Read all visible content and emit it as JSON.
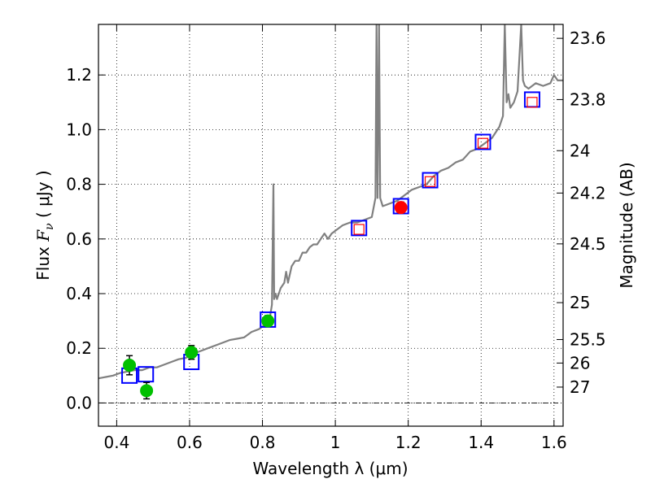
{
  "chart_data": {
    "type": "scatter",
    "xlabel": "Wavelength  λ (μm)",
    "ylabel": {
      "prefix": "Flux ",
      "symbol": "F",
      "subscript": "ν",
      "unit": " ( μJy )"
    },
    "y2label": "Magnitude (AB)",
    "xlim": [
      0.35,
      1.625
    ],
    "ylim": [
      -0.085,
      1.385
    ],
    "grid": true,
    "x_ticks": [
      {
        "value": 0.4,
        "label": "0.4"
      },
      {
        "value": 0.6,
        "label": "0.6"
      },
      {
        "value": 0.8,
        "label": "0.8"
      },
      {
        "value": 1.0,
        "label": "1"
      },
      {
        "value": 1.2,
        "label": "1.2"
      },
      {
        "value": 1.4,
        "label": "1.4"
      },
      {
        "value": 1.6,
        "label": "1.6"
      }
    ],
    "y_ticks": [
      {
        "value": 0.0,
        "label": "0.0"
      },
      {
        "value": 0.2,
        "label": "0.2"
      },
      {
        "value": 0.4,
        "label": "0.4"
      },
      {
        "value": 0.6,
        "label": "0.6"
      },
      {
        "value": 0.8,
        "label": "0.8"
      },
      {
        "value": 1.0,
        "label": "1.0"
      },
      {
        "value": 1.2,
        "label": "1.2"
      }
    ],
    "y2_ticks": [
      {
        "label": "23.6",
        "flux": 1.334
      },
      {
        "label": "23.8",
        "flux": 1.11
      },
      {
        "label": "24",
        "flux": 0.923
      },
      {
        "label": "24.2",
        "flux": 0.768
      },
      {
        "label": "24.5",
        "flux": 0.582
      },
      {
        "label": "25",
        "flux": 0.367
      },
      {
        "label": "25.5",
        "flux": 0.232
      },
      {
        "label": "26",
        "flux": 0.146
      },
      {
        "label": "27",
        "flux": 0.058
      }
    ],
    "series": [
      {
        "kind": "line",
        "color": "#808080",
        "x": [
          0.35,
          0.37,
          0.39,
          0.41,
          0.43,
          0.45,
          0.47,
          0.49,
          0.51,
          0.53,
          0.55,
          0.57,
          0.59,
          0.61,
          0.63,
          0.65,
          0.67,
          0.69,
          0.71,
          0.73,
          0.75,
          0.77,
          0.79,
          0.81,
          0.82,
          0.826,
          0.83,
          0.832,
          0.836,
          0.84,
          0.85,
          0.86,
          0.865,
          0.87,
          0.88,
          0.89,
          0.9,
          0.91,
          0.92,
          0.93,
          0.94,
          0.95,
          0.96,
          0.97,
          0.98,
          0.99,
          1.0,
          1.02,
          1.04,
          1.06,
          1.08,
          1.1,
          1.11,
          1.113,
          1.116,
          1.12,
          1.123,
          1.13,
          1.15,
          1.17,
          1.19,
          1.21,
          1.23,
          1.25,
          1.27,
          1.29,
          1.31,
          1.33,
          1.35,
          1.37,
          1.39,
          1.41,
          1.43,
          1.45,
          1.46,
          1.465,
          1.47,
          1.475,
          1.48,
          1.49,
          1.5,
          1.51,
          1.515,
          1.52,
          1.53,
          1.55,
          1.57,
          1.59,
          1.6,
          1.61,
          1.625
        ],
        "y": [
          0.09,
          0.095,
          0.1,
          0.11,
          0.115,
          0.12,
          0.12,
          0.13,
          0.13,
          0.14,
          0.15,
          0.16,
          0.165,
          0.18,
          0.19,
          0.2,
          0.21,
          0.22,
          0.23,
          0.235,
          0.24,
          0.26,
          0.27,
          0.29,
          0.31,
          0.36,
          0.8,
          0.38,
          0.4,
          0.38,
          0.42,
          0.44,
          0.48,
          0.44,
          0.5,
          0.52,
          0.52,
          0.55,
          0.55,
          0.57,
          0.58,
          0.58,
          0.6,
          0.62,
          0.6,
          0.62,
          0.63,
          0.65,
          0.66,
          0.66,
          0.67,
          0.68,
          0.75,
          1.385,
          0.75,
          1.385,
          0.75,
          0.72,
          0.73,
          0.74,
          0.76,
          0.78,
          0.79,
          0.8,
          0.83,
          0.85,
          0.86,
          0.88,
          0.89,
          0.92,
          0.93,
          0.95,
          0.97,
          1.01,
          1.05,
          1.385,
          1.1,
          1.13,
          1.08,
          1.1,
          1.14,
          1.385,
          1.18,
          1.16,
          1.15,
          1.17,
          1.16,
          1.17,
          1.2,
          1.18,
          1.18
        ]
      },
      {
        "kind": "marker",
        "marker": "square",
        "color": "#0000ff",
        "name": "",
        "x": [
          0.435,
          0.48,
          0.605,
          0.815,
          1.065,
          1.18,
          1.26,
          1.405,
          1.54
        ],
        "y": [
          0.1,
          0.105,
          0.15,
          0.305,
          0.64,
          0.72,
          0.815,
          0.955,
          1.11
        ]
      },
      {
        "kind": "marker",
        "marker": "square-small",
        "color": "#ff0000",
        "name": "",
        "x": [
          1.065,
          1.26,
          1.405,
          1.54
        ],
        "y": [
          0.635,
          0.81,
          0.95,
          1.1
        ]
      },
      {
        "kind": "marker",
        "marker": "circle",
        "color": "#00c000",
        "name": "",
        "x": [
          0.435,
          0.482,
          0.605,
          0.815
        ],
        "y": [
          0.138,
          0.045,
          0.185,
          0.3
        ],
        "err": [
          0.035,
          0.03,
          0.025,
          0.02
        ]
      },
      {
        "kind": "marker",
        "marker": "circle",
        "color": "#ff0000",
        "name": "",
        "x": [
          1.18
        ],
        "y": [
          0.715
        ],
        "err": [
          0.02
        ]
      }
    ]
  }
}
